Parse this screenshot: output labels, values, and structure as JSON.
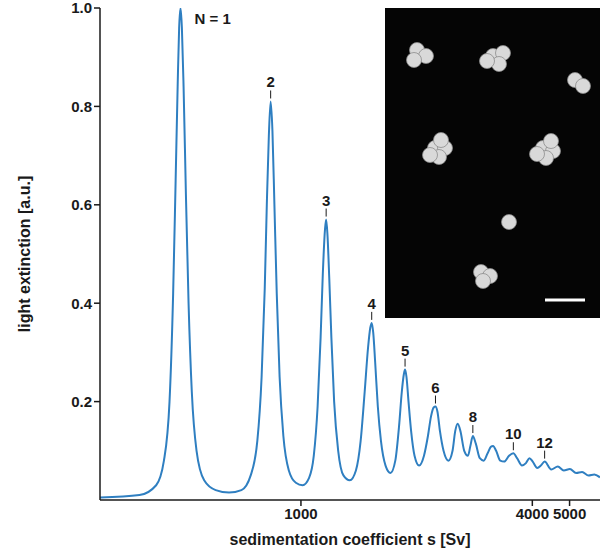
{
  "chart_data": {
    "type": "line",
    "x_label": "sedimentation coefficient s [Sv]",
    "y_label": "light extinction [a.u.]",
    "log": "x",
    "xlim": [
      300,
      6000
    ],
    "xticks": [
      1000,
      4000,
      5000
    ],
    "ylim": [
      0,
      1
    ],
    "yticks": [
      0.2,
      0.4,
      0.6,
      0.8,
      {
        "value": 1,
        "label": "1.0"
      }
    ],
    "color": "#2f7fc1",
    "x": [
      300,
      380,
      420,
      440,
      455,
      465,
      472,
      478,
      482,
      486,
      490,
      495,
      502,
      510,
      520,
      535,
      560,
      600,
      650,
      700,
      740,
      770,
      790,
      805,
      815,
      825,
      834,
      843,
      853,
      865,
      880,
      900,
      930,
      970,
      1010,
      1050,
      1080,
      1105,
      1125,
      1140,
      1155,
      1163,
      1172,
      1185,
      1200,
      1220,
      1250,
      1290,
      1340,
      1390,
      1430,
      1465,
      1495,
      1515,
      1528,
      1542,
      1560,
      1585,
      1615,
      1660,
      1710,
      1760,
      1800,
      1830,
      1852,
      1866,
      1882,
      1905,
      1935,
      1975,
      2030,
      2090,
      2140,
      2180,
      2215,
      2239,
      2265,
      2300,
      2350,
      2420,
      2480,
      2520,
      2558,
      2600,
      2660,
      2720,
      2760,
      2801,
      2850,
      2920,
      2990,
      3060,
      3120,
      3162,
      3220,
      3300,
      3380,
      3480,
      3570,
      3650,
      3760,
      3850,
      3933,
      4010,
      4120,
      4210,
      4306,
      4480,
      4660,
      4830,
      5010,
      5200,
      5390,
      5600,
      5800,
      6000
    ],
    "values": [
      0.005,
      0.01,
      0.03,
      0.08,
      0.2,
      0.42,
      0.65,
      0.85,
      0.96,
      1.0,
      0.96,
      0.84,
      0.62,
      0.4,
      0.22,
      0.1,
      0.04,
      0.02,
      0.015,
      0.02,
      0.05,
      0.12,
      0.25,
      0.43,
      0.6,
      0.74,
      0.81,
      0.75,
      0.6,
      0.42,
      0.25,
      0.13,
      0.06,
      0.035,
      0.03,
      0.045,
      0.09,
      0.19,
      0.33,
      0.46,
      0.55,
      0.57,
      0.54,
      0.45,
      0.33,
      0.2,
      0.1,
      0.05,
      0.04,
      0.06,
      0.12,
      0.22,
      0.31,
      0.35,
      0.36,
      0.34,
      0.28,
      0.19,
      0.12,
      0.07,
      0.055,
      0.08,
      0.15,
      0.22,
      0.255,
      0.265,
      0.25,
      0.2,
      0.14,
      0.09,
      0.07,
      0.09,
      0.13,
      0.17,
      0.188,
      0.19,
      0.18,
      0.14,
      0.1,
      0.08,
      0.1,
      0.14,
      0.155,
      0.14,
      0.1,
      0.09,
      0.11,
      0.13,
      0.115,
      0.085,
      0.08,
      0.095,
      0.108,
      0.11,
      0.1,
      0.08,
      0.078,
      0.09,
      0.095,
      0.085,
      0.07,
      0.075,
      0.085,
      0.078,
      0.065,
      0.07,
      0.078,
      0.062,
      0.068,
      0.06,
      0.063,
      0.055,
      0.057,
      0.05,
      0.052,
      0.046
    ],
    "annotations": [
      {
        "text": "N = 1",
        "x": 486,
        "y": 1.0
      },
      {
        "text": "2",
        "x": 834,
        "y": 0.81
      },
      {
        "text": "3",
        "x": 1163,
        "y": 0.57
      },
      {
        "text": "4",
        "x": 1528,
        "y": 0.36
      },
      {
        "text": "5",
        "x": 1866,
        "y": 0.265
      },
      {
        "text": "6",
        "x": 2239,
        "y": 0.19
      },
      {
        "text": "8",
        "x": 2801,
        "y": 0.13
      },
      {
        "text": "10",
        "x": 3570,
        "y": 0.095
      },
      {
        "text": "12",
        "x": 4306,
        "y": 0.078
      }
    ]
  }
}
